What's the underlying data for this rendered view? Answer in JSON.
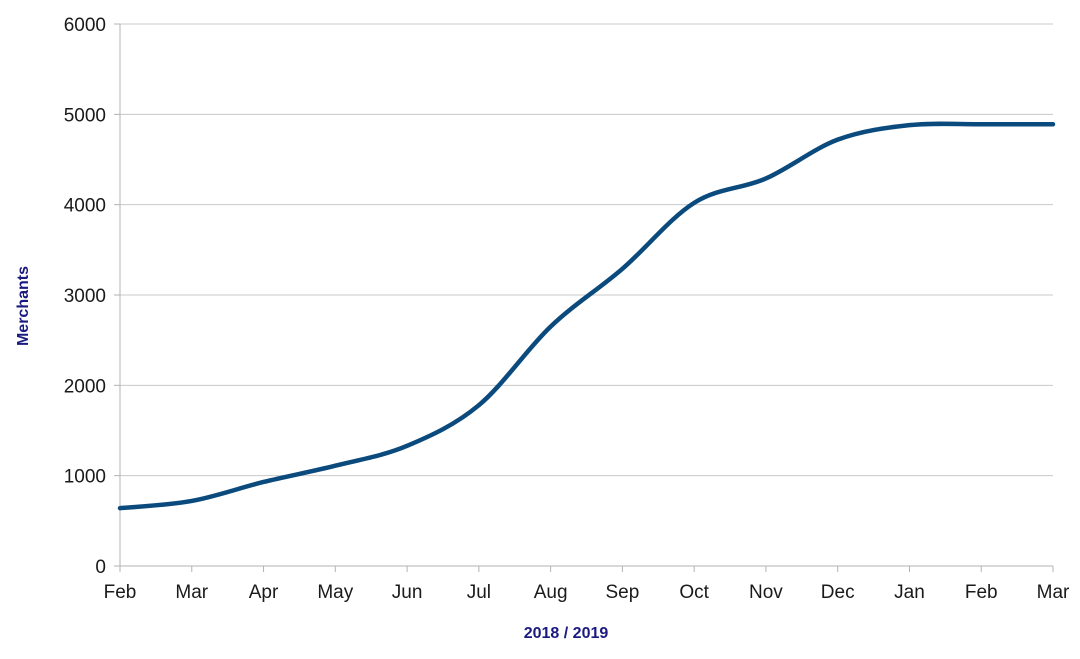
{
  "chart_data": {
    "type": "line",
    "title": "",
    "xlabel": "2018 / 2019",
    "ylabel": "Merchants",
    "x": [
      "Feb",
      "Mar",
      "Apr",
      "May",
      "Jun",
      "Jul",
      "Aug",
      "Sep",
      "Oct",
      "Nov",
      "Dec",
      "Jan",
      "Feb",
      "Mar"
    ],
    "ylim": [
      0,
      6000
    ],
    "yticks": [
      0,
      1000,
      2000,
      3000,
      4000,
      5000,
      6000
    ],
    "grid": true,
    "legend": "none",
    "series": [
      {
        "name": "",
        "color": "#0b4a7d",
        "values": [
          640,
          720,
          930,
          1110,
          1330,
          1780,
          2650,
          3290,
          4020,
          4290,
          4720,
          4880,
          4890,
          4890
        ]
      }
    ]
  },
  "colors": {
    "axis_title": "#1a1a80",
    "gridline": "#c8c8c8",
    "axis": "#b3b3b3",
    "tick_text": "#1a1a1a"
  }
}
